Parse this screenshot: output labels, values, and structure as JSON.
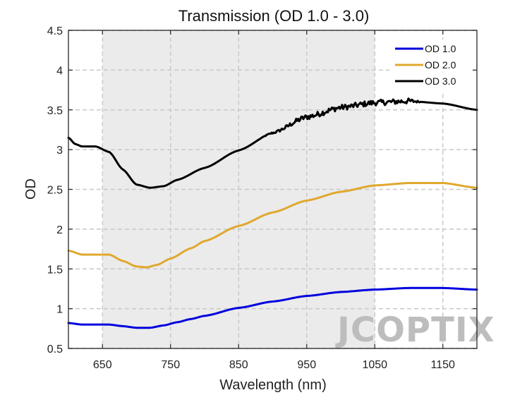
{
  "chart_data": {
    "type": "line",
    "title": "Transmission (OD 1.0 - 3.0)",
    "xlabel": "Wavelength (nm)",
    "ylabel": "OD",
    "xlim": [
      600,
      1200
    ],
    "ylim": [
      0.5,
      4.5
    ],
    "xticks": [
      650,
      750,
      850,
      950,
      1050,
      1150
    ],
    "xtick_labels": [
      "650",
      "750",
      "850",
      "950",
      "1050",
      "1150"
    ],
    "yticks": [
      0.5,
      1,
      1.5,
      2,
      2.5,
      3,
      3.5,
      4,
      4.5
    ],
    "ytick_labels": [
      "0.5",
      "1",
      "1.5",
      "2",
      "2.5",
      "3",
      "3.5",
      "4",
      "4.5"
    ],
    "grid": true,
    "legend_position": "top-right",
    "highlight_band": [
      650,
      1050
    ],
    "watermark": "JCOPTIX",
    "series": [
      {
        "name": "OD 1.0",
        "color": "#0000dd",
        "x": [
          600,
          620,
          640,
          660,
          680,
          700,
          720,
          740,
          760,
          780,
          800,
          850,
          900,
          950,
          1000,
          1050,
          1100,
          1150,
          1200
        ],
        "y": [
          0.82,
          0.8,
          0.8,
          0.8,
          0.78,
          0.76,
          0.76,
          0.79,
          0.83,
          0.87,
          0.91,
          1.01,
          1.09,
          1.16,
          1.21,
          1.24,
          1.26,
          1.26,
          1.24
        ]
      },
      {
        "name": "OD 2.0",
        "color": "#e0a82e",
        "x": [
          600,
          620,
          640,
          660,
          680,
          700,
          715,
          730,
          750,
          780,
          800,
          850,
          900,
          950,
          1000,
          1050,
          1100,
          1150,
          1200
        ],
        "y": [
          1.73,
          1.68,
          1.68,
          1.68,
          1.6,
          1.53,
          1.52,
          1.55,
          1.63,
          1.76,
          1.85,
          2.04,
          2.21,
          2.36,
          2.47,
          2.55,
          2.58,
          2.58,
          2.52
        ]
      },
      {
        "name": "OD 3.0",
        "color": "#000000",
        "noise_start": 880,
        "noise_amplitude": 0.035,
        "x": [
          600,
          610,
          620,
          640,
          660,
          680,
          700,
          720,
          740,
          760,
          800,
          850,
          900,
          950,
          1000,
          1050,
          1100,
          1150,
          1200
        ],
        "y": [
          3.15,
          3.07,
          3.04,
          3.04,
          2.97,
          2.75,
          2.56,
          2.52,
          2.54,
          2.62,
          2.77,
          2.99,
          3.21,
          3.41,
          3.53,
          3.59,
          3.61,
          3.58,
          3.5
        ]
      }
    ]
  }
}
